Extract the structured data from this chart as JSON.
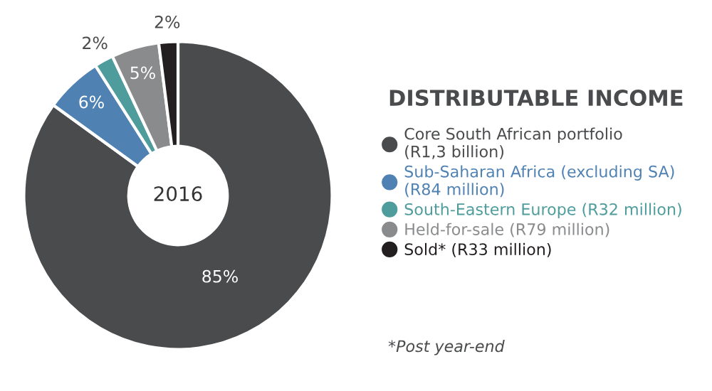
{
  "chart_data": {
    "type": "donut",
    "title": "DISTRIBUTABLE INCOME",
    "categories": [
      "Core South African portfolio\n(R1,3 billion)",
      "Sub-Saharan Africa (excluding SA)\n(R84 million)",
      "South-Eastern Europe (R32 million)",
      "Held-for-sale (R79 million)",
      "Sold* (R33 million)"
    ],
    "values": [
      85,
      6,
      2,
      5,
      2
    ],
    "colors": [
      "#4a4b4d",
      "#4f82b3",
      "#4f9c9c",
      "#8a8b8d",
      "#231f20"
    ],
    "value_labels": [
      "85%",
      "6%",
      "2%",
      "5%",
      "2%"
    ],
    "legend": "right",
    "annotations": [
      "2016",
      "*Post year-end"
    ]
  }
}
